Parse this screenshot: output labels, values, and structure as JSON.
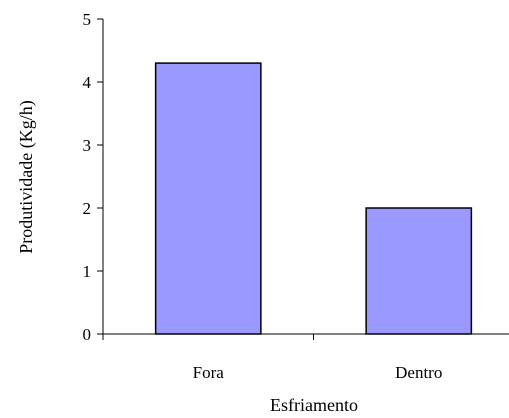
{
  "chart_data": {
    "type": "bar",
    "categories": [
      "Fora",
      "Dentro"
    ],
    "values": [
      4.3,
      2.0
    ],
    "title": "",
    "xlabel": "Esfriamento",
    "ylabel": "Produtividade (Kg/h)",
    "ylim": [
      0,
      5
    ],
    "yticks": [
      0,
      1,
      2,
      3,
      4,
      5
    ],
    "grid": false,
    "legend": "none",
    "bar_color": "#9999ff",
    "bar_edge_color": "#000000"
  }
}
